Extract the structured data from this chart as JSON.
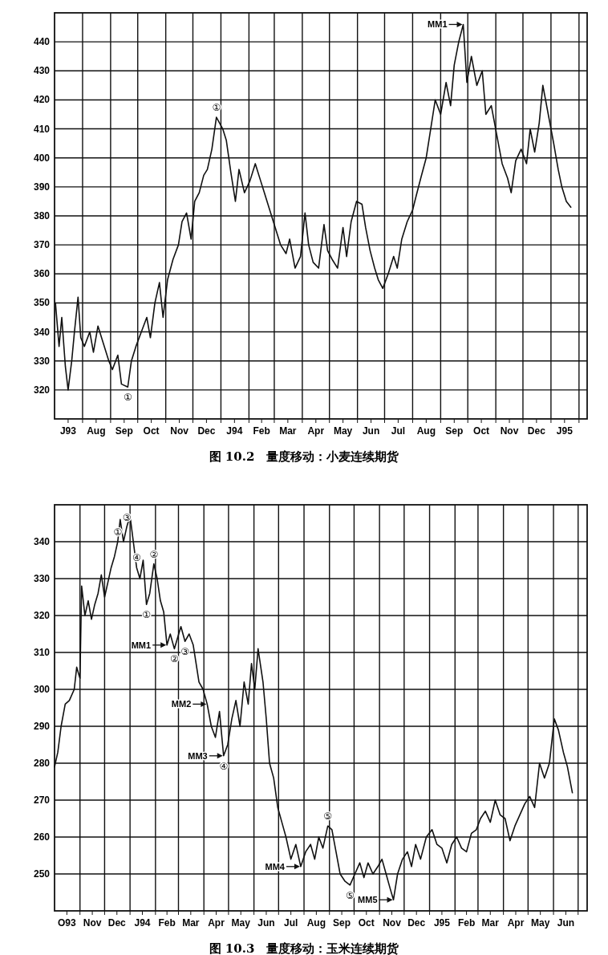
{
  "chart_data": [
    {
      "type": "line",
      "title": "图 10.2　量度移动：小麦连续期货",
      "color": "#111111",
      "grid": true,
      "xlim": [
        "1993-07-01",
        "1995-02-10"
      ],
      "ylim": [
        310,
        450
      ],
      "yticks": [
        320,
        330,
        340,
        350,
        360,
        370,
        380,
        390,
        400,
        410,
        420,
        430,
        440
      ],
      "xticks": [
        {
          "value": "1993-07-16",
          "label": "J93"
        },
        {
          "value": "1993-08-01",
          "label": null
        },
        {
          "value": "1993-08-16",
          "label": "Aug"
        },
        {
          "value": "1993-09-01",
          "label": null
        },
        {
          "value": "1993-09-16",
          "label": "Sep"
        },
        {
          "value": "1993-10-01",
          "label": null
        },
        {
          "value": "1993-10-16",
          "label": "Oct"
        },
        {
          "value": "1993-11-01",
          "label": null
        },
        {
          "value": "1993-11-16",
          "label": "Nov"
        },
        {
          "value": "1993-12-01",
          "label": null
        },
        {
          "value": "1993-12-16",
          "label": "Dec"
        },
        {
          "value": "1994-01-01",
          "label": null
        },
        {
          "value": "1994-01-16",
          "label": "J94"
        },
        {
          "value": "1994-02-01",
          "label": null
        },
        {
          "value": "1994-02-15",
          "label": "Feb"
        },
        {
          "value": "1994-03-01",
          "label": null
        },
        {
          "value": "1994-03-16",
          "label": "Mar"
        },
        {
          "value": "1994-04-01",
          "label": null
        },
        {
          "value": "1994-04-16",
          "label": "Apr"
        },
        {
          "value": "1994-05-01",
          "label": null
        },
        {
          "value": "1994-05-16",
          "label": "May"
        },
        {
          "value": "1994-06-01",
          "label": null
        },
        {
          "value": "1994-06-16",
          "label": "Jun"
        },
        {
          "value": "1994-07-01",
          "label": null
        },
        {
          "value": "1994-07-16",
          "label": "Jul"
        },
        {
          "value": "1994-08-01",
          "label": null
        },
        {
          "value": "1994-08-16",
          "label": "Aug"
        },
        {
          "value": "1994-09-01",
          "label": null
        },
        {
          "value": "1994-09-16",
          "label": "Sep"
        },
        {
          "value": "1994-10-01",
          "label": null
        },
        {
          "value": "1994-10-16",
          "label": "Oct"
        },
        {
          "value": "1994-11-01",
          "label": null
        },
        {
          "value": "1994-11-16",
          "label": "Nov"
        },
        {
          "value": "1994-12-01",
          "label": null
        },
        {
          "value": "1994-12-16",
          "label": "Dec"
        },
        {
          "value": "1995-01-01",
          "label": null
        },
        {
          "value": "1995-01-16",
          "label": "J95"
        },
        {
          "value": "1995-02-01",
          "label": null
        }
      ],
      "x": [
        "1993-07-02",
        "1993-07-06",
        "1993-07-09",
        "1993-07-13",
        "1993-07-16",
        "1993-07-20",
        "1993-07-23",
        "1993-07-27",
        "1993-07-30",
        "1993-08-03",
        "1993-08-09",
        "1993-08-13",
        "1993-08-18",
        "1993-08-24",
        "1993-08-30",
        "1993-09-03",
        "1993-09-09",
        "1993-09-13",
        "1993-09-20",
        "1993-09-24",
        "1993-09-29",
        "1993-10-05",
        "1993-10-11",
        "1993-10-15",
        "1993-10-20",
        "1993-10-25",
        "1993-10-29",
        "1993-11-03",
        "1993-11-09",
        "1993-11-15",
        "1993-11-19",
        "1993-11-24",
        "1993-11-29",
        "1993-12-03",
        "1993-12-08",
        "1993-12-13",
        "1993-12-17",
        "1993-12-22",
        "1993-12-27",
        "1994-01-03",
        "1994-01-07",
        "1994-01-12",
        "1994-01-17",
        "1994-01-21",
        "1994-01-27",
        "1994-02-02",
        "1994-02-08",
        "1994-02-14",
        "1994-02-18",
        "1994-02-24",
        "1994-03-02",
        "1994-03-08",
        "1994-03-14",
        "1994-03-18",
        "1994-03-24",
        "1994-03-30",
        "1994-04-04",
        "1994-04-08",
        "1994-04-13",
        "1994-04-19",
        "1994-04-25",
        "1994-04-29",
        "1994-05-04",
        "1994-05-10",
        "1994-05-16",
        "1994-05-20",
        "1994-05-25",
        "1994-05-31",
        "1994-06-06",
        "1994-06-10",
        "1994-06-15",
        "1994-06-20",
        "1994-06-24",
        "1994-06-29",
        "1994-07-05",
        "1994-07-11",
        "1994-07-15",
        "1994-07-20",
        "1994-07-26",
        "1994-08-01",
        "1994-08-05",
        "1994-08-10",
        "1994-08-16",
        "1994-08-22",
        "1994-08-26",
        "1994-09-01",
        "1994-09-07",
        "1994-09-12",
        "1994-09-16",
        "1994-09-21",
        "1994-09-26",
        "1994-09-30",
        "1994-10-05",
        "1994-10-11",
        "1994-10-17",
        "1994-10-21",
        "1994-10-27",
        "1994-11-02",
        "1994-11-08",
        "1994-11-14",
        "1994-11-18",
        "1994-11-23",
        "1994-11-29",
        "1994-12-05",
        "1994-12-09",
        "1994-12-14",
        "1994-12-19",
        "1994-12-23",
        "1994-12-29",
        "1995-01-04",
        "1995-01-09",
        "1995-01-13",
        "1995-01-18",
        "1995-01-23"
      ],
      "values": [
        350,
        335,
        345,
        328,
        320,
        330,
        340,
        352,
        338,
        335,
        340,
        333,
        342,
        336,
        330,
        327,
        332,
        322,
        321,
        330,
        335,
        340,
        345,
        338,
        350,
        357,
        345,
        358,
        365,
        370,
        378,
        381,
        372,
        385,
        388,
        394,
        396,
        403,
        414,
        410,
        406,
        395,
        385,
        396,
        388,
        392,
        398,
        392,
        388,
        382,
        376,
        370,
        367,
        372,
        362,
        366,
        381,
        370,
        364,
        362,
        377,
        368,
        365,
        362,
        376,
        366,
        378,
        385,
        384,
        376,
        368,
        362,
        358,
        355,
        360,
        366,
        362,
        372,
        378,
        382,
        387,
        393,
        400,
        412,
        420,
        415,
        426,
        418,
        432,
        440,
        446,
        426,
        435,
        425,
        430,
        415,
        418,
        408,
        398,
        393,
        388,
        399,
        403,
        398,
        410,
        402,
        412,
        425,
        415,
        405,
        396,
        390,
        385,
        383
      ],
      "annotations": [
        {
          "text": "①",
          "x": "1993-12-27",
          "y": 414
        },
        {
          "text": "①",
          "x": "1993-09-20",
          "y": 321
        },
        {
          "text": "MM1",
          "x": "1994-09-26",
          "y": 446
        }
      ]
    },
    {
      "type": "line",
      "title": "图 10.3　量度移动：玉米连续期货",
      "color": "#111111",
      "grid": true,
      "xlim": [
        "1993-10-01",
        "1995-07-12"
      ],
      "ylim": [
        240,
        350
      ],
      "yticks": [
        250,
        260,
        270,
        280,
        290,
        300,
        310,
        320,
        330,
        340
      ],
      "xticks": [
        {
          "value": "1993-10-16",
          "label": "O93"
        },
        {
          "value": "1993-11-01",
          "label": null
        },
        {
          "value": "1993-11-16",
          "label": "Nov"
        },
        {
          "value": "1993-12-01",
          "label": null
        },
        {
          "value": "1993-12-16",
          "label": "Dec"
        },
        {
          "value": "1994-01-01",
          "label": null
        },
        {
          "value": "1994-01-16",
          "label": "J94"
        },
        {
          "value": "1994-02-01",
          "label": null
        },
        {
          "value": "1994-02-15",
          "label": "Feb"
        },
        {
          "value": "1994-03-01",
          "label": null
        },
        {
          "value": "1994-03-16",
          "label": "Mar"
        },
        {
          "value": "1994-04-01",
          "label": null
        },
        {
          "value": "1994-04-16",
          "label": "Apr"
        },
        {
          "value": "1994-05-01",
          "label": null
        },
        {
          "value": "1994-05-16",
          "label": "May"
        },
        {
          "value": "1994-06-01",
          "label": null
        },
        {
          "value": "1994-06-16",
          "label": "Jun"
        },
        {
          "value": "1994-07-01",
          "label": null
        },
        {
          "value": "1994-07-16",
          "label": "Jul"
        },
        {
          "value": "1994-08-01",
          "label": null
        },
        {
          "value": "1994-08-16",
          "label": "Aug"
        },
        {
          "value": "1994-09-01",
          "label": null
        },
        {
          "value": "1994-09-16",
          "label": "Sep"
        },
        {
          "value": "1994-10-01",
          "label": null
        },
        {
          "value": "1994-10-16",
          "label": "Oct"
        },
        {
          "value": "1994-11-01",
          "label": null
        },
        {
          "value": "1994-11-16",
          "label": "Nov"
        },
        {
          "value": "1994-12-01",
          "label": null
        },
        {
          "value": "1994-12-16",
          "label": "Dec"
        },
        {
          "value": "1995-01-01",
          "label": null
        },
        {
          "value": "1995-01-16",
          "label": "J95"
        },
        {
          "value": "1995-02-01",
          "label": null
        },
        {
          "value": "1995-02-15",
          "label": "Feb"
        },
        {
          "value": "1995-03-01",
          "label": null
        },
        {
          "value": "1995-03-16",
          "label": "Mar"
        },
        {
          "value": "1995-04-01",
          "label": null
        },
        {
          "value": "1995-04-16",
          "label": "Apr"
        },
        {
          "value": "1995-05-01",
          "label": null
        },
        {
          "value": "1995-05-16",
          "label": "May"
        },
        {
          "value": "1995-06-01",
          "label": null
        },
        {
          "value": "1995-06-16",
          "label": "Jun"
        },
        {
          "value": "1995-07-01",
          "label": null
        }
      ],
      "x": [
        "1993-10-01",
        "1993-10-05",
        "1993-10-09",
        "1993-10-14",
        "1993-10-19",
        "1993-10-25",
        "1993-10-28",
        "1993-11-01",
        "1993-11-03",
        "1993-11-07",
        "1993-11-11",
        "1993-11-15",
        "1993-11-19",
        "1993-11-23",
        "1993-11-27",
        "1993-12-01",
        "1993-12-05",
        "1993-12-09",
        "1993-12-13",
        "1993-12-17",
        "1993-12-20",
        "1993-12-24",
        "1993-12-28",
        "1994-01-01",
        "1994-01-05",
        "1994-01-09",
        "1994-01-13",
        "1994-01-17",
        "1994-01-21",
        "1994-01-25",
        "1994-01-30",
        "1994-02-03",
        "1994-02-07",
        "1994-02-11",
        "1994-02-15",
        "1994-02-19",
        "1994-02-24",
        "1994-02-28",
        "1994-03-04",
        "1994-03-09",
        "1994-03-14",
        "1994-03-19",
        "1994-03-26",
        "1994-03-31",
        "1994-04-05",
        "1994-04-10",
        "1994-04-15",
        "1994-04-20",
        "1994-04-25",
        "1994-04-30",
        "1994-05-05",
        "1994-05-10",
        "1994-05-15",
        "1994-05-20",
        "1994-05-25",
        "1994-05-29",
        "1994-06-02",
        "1994-06-06",
        "1994-06-12",
        "1994-06-16",
        "1994-06-20",
        "1994-06-25",
        "1994-06-30",
        "1994-07-05",
        "1994-07-10",
        "1994-07-16",
        "1994-07-22",
        "1994-07-28",
        "1994-08-03",
        "1994-08-09",
        "1994-08-14",
        "1994-08-19",
        "1994-08-24",
        "1994-08-30",
        "1994-09-04",
        "1994-09-09",
        "1994-09-14",
        "1994-09-20",
        "1994-09-26",
        "1994-10-02",
        "1994-10-08",
        "1994-10-13",
        "1994-10-18",
        "1994-10-24",
        "1994-10-30",
        "1994-11-04",
        "1994-11-09",
        "1994-11-14",
        "1994-11-18",
        "1994-11-23",
        "1994-11-29",
        "1994-12-05",
        "1994-12-10",
        "1994-12-15",
        "1994-12-21",
        "1994-12-28",
        "1995-01-04",
        "1995-01-10",
        "1995-01-16",
        "1995-01-22",
        "1995-01-28",
        "1995-02-03",
        "1995-02-09",
        "1995-02-15",
        "1995-02-21",
        "1995-02-27",
        "1995-03-04",
        "1995-03-10",
        "1995-03-16",
        "1995-03-22",
        "1995-03-28",
        "1995-04-03",
        "1995-04-09",
        "1995-04-15",
        "1995-04-21",
        "1995-04-27",
        "1995-05-03",
        "1995-05-09",
        "1995-05-15",
        "1995-05-21",
        "1995-05-27",
        "1995-06-02",
        "1995-06-07",
        "1995-06-13",
        "1995-06-18",
        "1995-06-24"
      ],
      "values": [
        279,
        283,
        290,
        296,
        297,
        300,
        306,
        303,
        328,
        320,
        324,
        319,
        323,
        326,
        331,
        325,
        329,
        333,
        336,
        340,
        346,
        340,
        344,
        347,
        340,
        333,
        330,
        335,
        323,
        326,
        334,
        330,
        324,
        321,
        312,
        315,
        311,
        314,
        317,
        313,
        315,
        312,
        302,
        300,
        296,
        290,
        287,
        294,
        282,
        285,
        292,
        297,
        290,
        302,
        296,
        307,
        300,
        311,
        302,
        292,
        280,
        276,
        268,
        264,
        260,
        254,
        258,
        252,
        256,
        258,
        254,
        260,
        257,
        263,
        262,
        256,
        250,
        248,
        247,
        250,
        253,
        249,
        253,
        250,
        252,
        254,
        250,
        246,
        243,
        250,
        254,
        256,
        252,
        258,
        254,
        260,
        262,
        258,
        257,
        253,
        258,
        260,
        257,
        256,
        261,
        262,
        265,
        267,
        264,
        270,
        266,
        265,
        259,
        263,
        266,
        269,
        271,
        268,
        280,
        276,
        280,
        292,
        289,
        283,
        279,
        272
      ],
      "annotations": [
        {
          "text": "①",
          "x": "1993-12-17",
          "y": 340
        },
        {
          "text": "③",
          "x": "1993-12-28",
          "y": 344
        },
        {
          "text": "④",
          "x": "1994-01-09",
          "y": 333
        },
        {
          "text": "①",
          "x": "1994-01-21",
          "y": 323
        },
        {
          "text": "②",
          "x": "1994-01-30",
          "y": 334
        },
        {
          "text": "MM1",
          "x": "1994-02-15",
          "y": 312
        },
        {
          "text": "②",
          "x": "1994-02-24",
          "y": 311
        },
        {
          "text": "③",
          "x": "1994-03-09",
          "y": 313
        },
        {
          "text": "MM2",
          "x": "1994-04-05",
          "y": 296
        },
        {
          "text": "MM3",
          "x": "1994-04-25",
          "y": 282
        },
        {
          "text": "④",
          "x": "1994-04-25",
          "y": 282
        },
        {
          "text": "MM4",
          "x": "1994-07-28",
          "y": 252
        },
        {
          "text": "⑤",
          "x": "1994-08-30",
          "y": 263
        },
        {
          "text": "⑤",
          "x": "1994-09-26",
          "y": 247
        },
        {
          "text": "MM5",
          "x": "1994-11-18",
          "y": 243
        }
      ]
    }
  ]
}
